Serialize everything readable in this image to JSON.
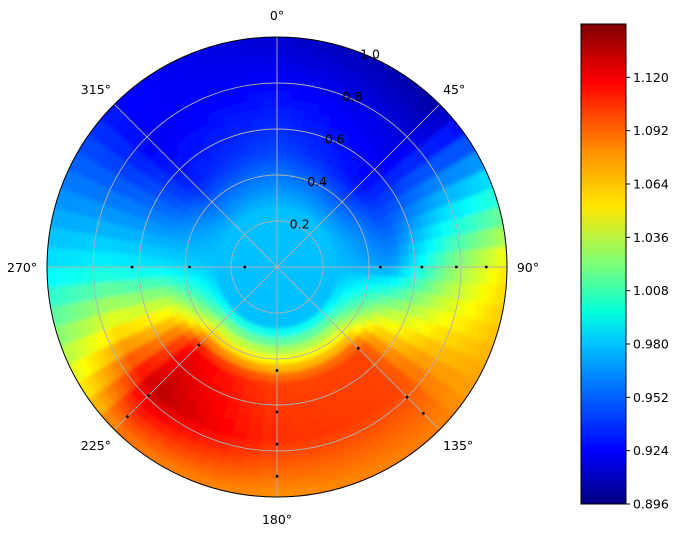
{
  "chart_data": {
    "type": "polar-contour",
    "title": "",
    "theta_zero_location": "N",
    "theta_direction": "clockwise",
    "theta_ticks_deg": [
      0,
      45,
      90,
      135,
      180,
      225,
      270,
      315
    ],
    "theta_tick_labels": [
      "0°",
      "45°",
      "90°",
      "135°",
      "180°",
      "225°",
      "270°",
      "315°"
    ],
    "r_ticks": [
      0.2,
      0.4,
      0.6,
      0.8,
      1.0
    ],
    "r_tick_labels": [
      "0.2",
      "0.4",
      "0.6",
      "0.8",
      "1.0"
    ],
    "rlim": [
      0,
      1.0
    ],
    "grid": true,
    "colormap": "jet",
    "colorbar": {
      "range": [
        0.896,
        1.148
      ],
      "ticks": [
        0.896,
        0.924,
        0.952,
        0.98,
        1.008,
        1.036,
        1.064,
        1.092,
        1.12
      ],
      "tick_labels": [
        "0.896",
        "0.924",
        "0.952",
        "0.980",
        "1.008",
        "1.036",
        "1.064",
        "1.092",
        "1.120"
      ],
      "placement": "right"
    },
    "field": {
      "theta_deg": [
        0,
        45,
        90,
        135,
        180,
        225,
        270,
        315
      ],
      "r": [
        0.25,
        0.5,
        0.75,
        1.0
      ],
      "values": [
        [
          0.975,
          0.975,
          0.975,
          0.975,
          0.975,
          0.975,
          0.975,
          0.975
        ],
        [
          0.945,
          0.93,
          0.965,
          1.1,
          1.1,
          1.12,
          0.985,
          0.935
        ],
        [
          0.93,
          0.92,
          1.02,
          1.1,
          1.105,
          1.135,
          0.99,
          0.925
        ],
        [
          0.915,
          0.905,
          1.06,
          1.085,
          1.08,
          1.085,
          0.985,
          0.93
        ]
      ]
    },
    "sample_points": [
      {
        "theta": 90,
        "r": 0.45
      },
      {
        "theta": 90,
        "r": 0.63
      },
      {
        "theta": 90,
        "r": 0.78
      },
      {
        "theta": 90,
        "r": 0.91
      },
      {
        "theta": 270,
        "r": 0.14
      },
      {
        "theta": 270,
        "r": 0.38
      },
      {
        "theta": 270,
        "r": 0.63
      },
      {
        "theta": 135,
        "r": 0.5
      },
      {
        "theta": 135,
        "r": 0.8
      },
      {
        "theta": 135,
        "r": 0.9
      },
      {
        "theta": 225,
        "r": 0.48
      },
      {
        "theta": 225,
        "r": 0.79
      },
      {
        "theta": 225,
        "r": 0.92
      },
      {
        "theta": 180,
        "r": 0.45
      },
      {
        "theta": 180,
        "r": 0.63
      },
      {
        "theta": 180,
        "r": 0.77
      },
      {
        "theta": 180,
        "r": 0.91
      }
    ]
  }
}
